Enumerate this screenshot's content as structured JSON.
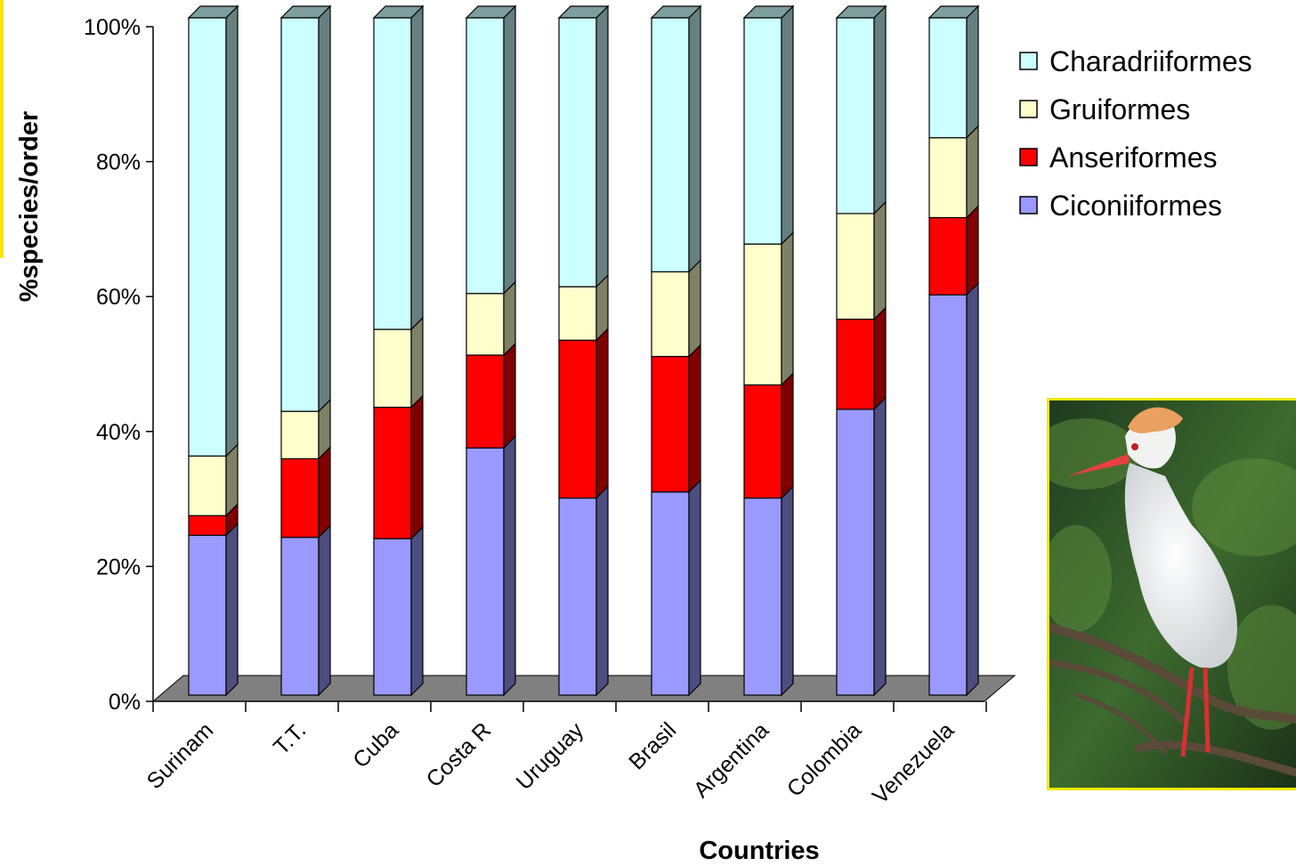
{
  "chart_data": {
    "type": "bar",
    "stacked": true,
    "three_d": true,
    "normalized": true,
    "xlabel": "Countries",
    "ylabel": "%species/order",
    "categories": [
      "Surinam",
      "T.T.",
      "Cuba",
      "Costa R",
      "Uruguay",
      "Brasil",
      "Argentina",
      "Colombia",
      "Venezuela"
    ],
    "y_ticks": [
      "0%",
      "20%",
      "40%",
      "60%",
      "80%",
      "100%"
    ],
    "ylim": [
      0,
      100
    ],
    "legend_position": "top-right",
    "grid": false,
    "series": [
      {
        "name": "Ciconiiformes",
        "color": "#9999ff",
        "values": [
          23.6,
          23.3,
          23.1,
          36.5,
          29.1,
          30.0,
          29.1,
          42.2,
          59.1
        ]
      },
      {
        "name": "Anseriformes",
        "color": "#ff0000",
        "values": [
          2.9,
          11.6,
          19.4,
          13.7,
          23.3,
          20.0,
          16.7,
          13.3,
          11.4
        ]
      },
      {
        "name": "Gruiformes",
        "color": "#ffffcc",
        "values": [
          8.8,
          7.0,
          11.5,
          9.1,
          7.9,
          12.5,
          20.8,
          15.6,
          11.8
        ]
      },
      {
        "name": "Charadriiformes",
        "color": "#ccffff",
        "values": [
          64.7,
          58.1,
          46.0,
          40.7,
          39.7,
          37.5,
          33.4,
          28.9,
          17.7
        ]
      }
    ]
  },
  "image": {
    "subject": "cattle-egret-photo"
  }
}
